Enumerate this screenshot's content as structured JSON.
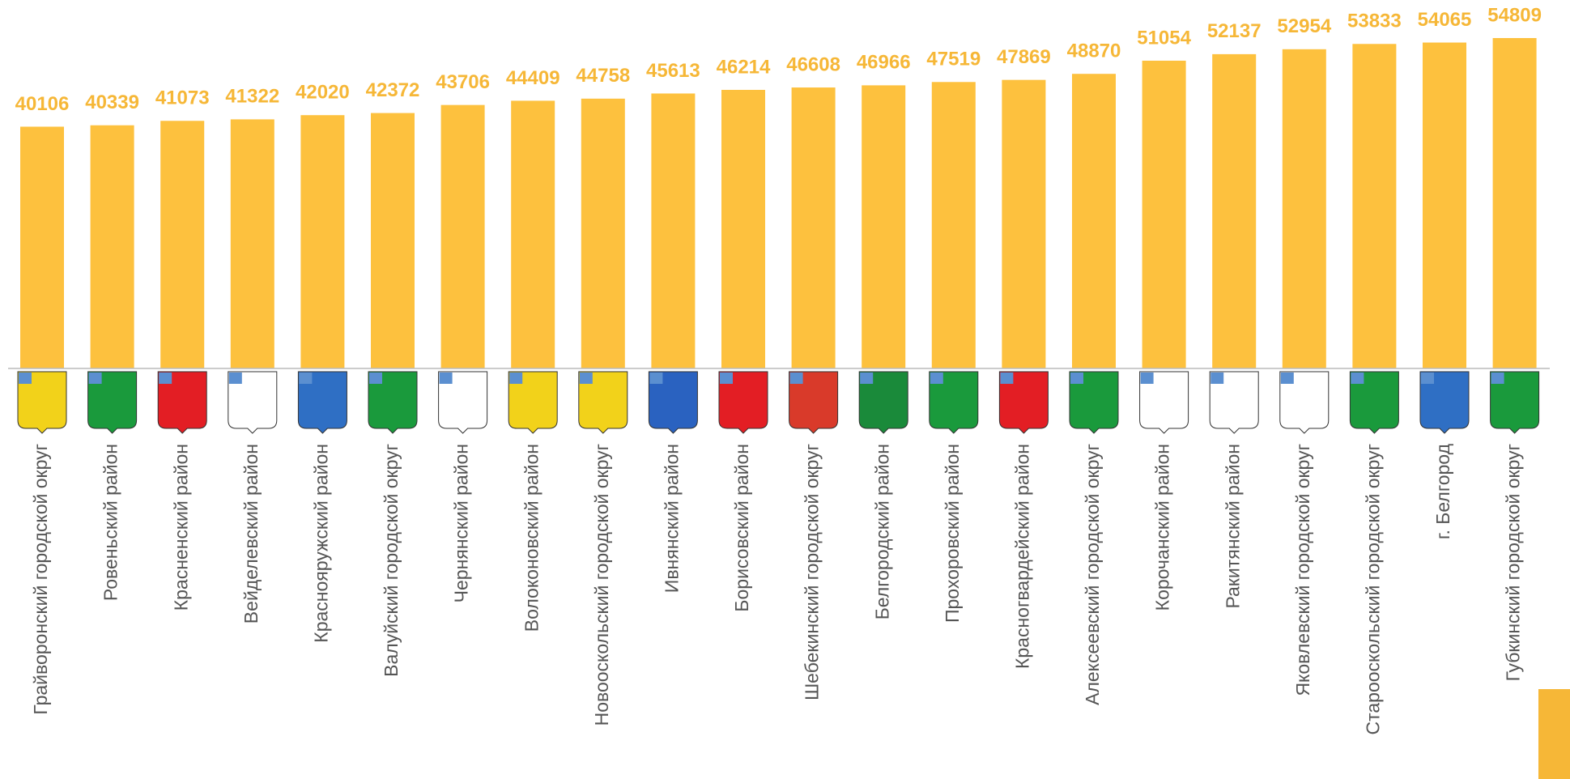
{
  "chart_data": {
    "type": "bar",
    "categories": [
      "Грайворонский городской округ",
      "Ровеньский район",
      "Красненский район",
      "Вейделевский район",
      "Краснояружский район",
      "Валуйский городской округ",
      "Чернянский район",
      "Волоконовский район",
      "Новооскольский городской округ",
      "Ивнянский район",
      "Борисовский район",
      "Шебекинский городской округ",
      "Белгородский район",
      "Прохоровский район",
      "Красногвардейский район",
      "Алексеевский городской округ",
      "Корочанский район",
      "Ракитянский район",
      "Яковлевский городской округ",
      "Старооскольский городской округ",
      "г. Белгород",
      "Губкинский городской округ"
    ],
    "values": [
      40106,
      40339,
      41073,
      41322,
      42020,
      42372,
      43706,
      44409,
      44758,
      45613,
      46214,
      46608,
      46966,
      47519,
      47869,
      48870,
      51054,
      52137,
      52954,
      53833,
      54065,
      54809
    ],
    "color": "#fdc13e",
    "label_color": "#f6b737"
  }
}
